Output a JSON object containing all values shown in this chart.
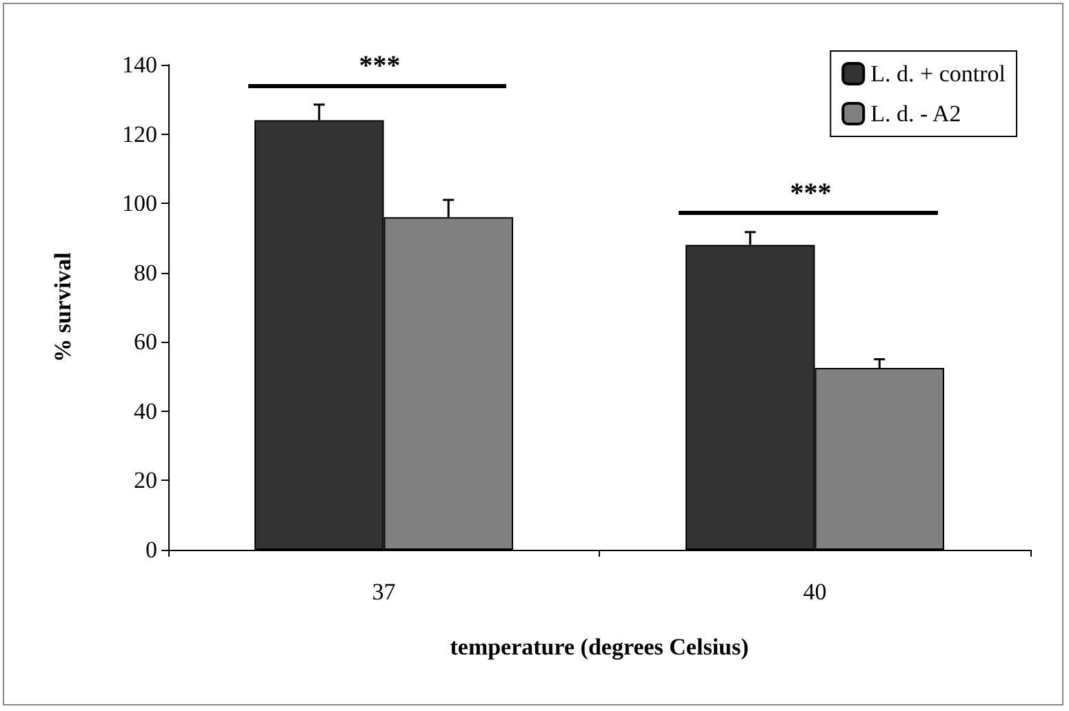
{
  "chart_data": {
    "type": "bar",
    "xlabel": "temperature (degrees Celsius)",
    "ylabel": "% survival",
    "categories": [
      "37",
      "40"
    ],
    "series": [
      {
        "name": "L. d. + control",
        "color": "#333333",
        "values": [
          124,
          88
        ],
        "errors": [
          4.5,
          3.7
        ]
      },
      {
        "name": "L. d. - A2",
        "color": "#808080",
        "values": [
          96,
          52.5
        ],
        "errors": [
          5,
          2.5
        ]
      }
    ],
    "ylim": [
      0,
      140
    ],
    "yticks": [
      0,
      20,
      40,
      60,
      80,
      100,
      120,
      140
    ],
    "grid": false,
    "legend": "top right",
    "annotations": [
      "***",
      "***"
    ]
  }
}
